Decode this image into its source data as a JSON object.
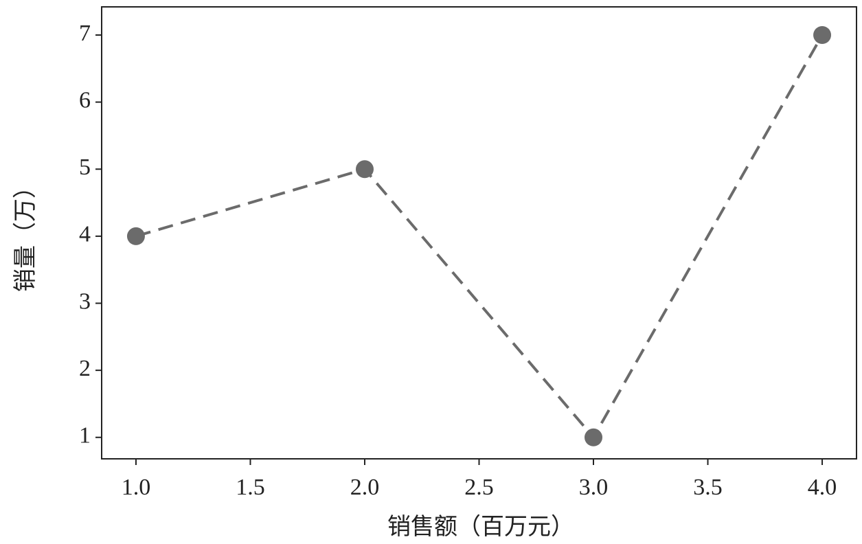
{
  "chart_data": {
    "type": "line",
    "x_label": "销售额（百万元）",
    "y_label": "销量（万）",
    "x": [
      1,
      2,
      3,
      4
    ],
    "series": [
      {
        "values": [
          4,
          5,
          1,
          7
        ],
        "color": "#6b6b6b"
      }
    ],
    "line_style": "dashed",
    "markers": true,
    "xlim": [
      0.85,
      4.15
    ],
    "xticks": [
      {
        "value": 1,
        "label": "1.0"
      },
      1.5,
      {
        "value": 2,
        "label": "2.0"
      },
      2.5,
      {
        "value": 3,
        "label": "3.0"
      },
      3.5,
      {
        "value": 4,
        "label": "4.0"
      }
    ],
    "ylim": [
      0.68,
      7.42
    ],
    "yticks": [
      1,
      2,
      3,
      4,
      5,
      6,
      7
    ],
    "grid": false
  }
}
